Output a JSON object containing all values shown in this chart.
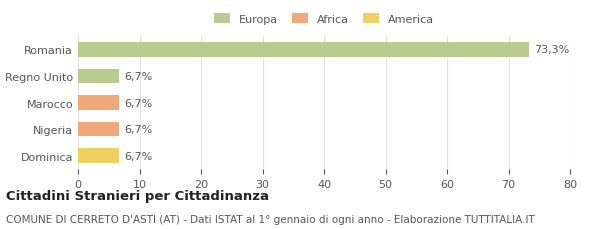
{
  "categories": [
    "Dominica",
    "Nigeria",
    "Marocco",
    "Regno Unito",
    "Romania"
  ],
  "values": [
    6.7,
    6.7,
    6.7,
    6.7,
    73.3
  ],
  "colors": [
    "#f0d060",
    "#f0a878",
    "#f0a878",
    "#b8cc90",
    "#b8cc90"
  ],
  "labels": [
    "6,7%",
    "6,7%",
    "6,7%",
    "6,7%",
    "73,3%"
  ],
  "legend_labels": [
    "Europa",
    "Africa",
    "America"
  ],
  "legend_colors": [
    "#b8cc90",
    "#f0a878",
    "#f0d060"
  ],
  "xlim": [
    0,
    80
  ],
  "xticks": [
    0,
    10,
    20,
    30,
    40,
    50,
    60,
    70,
    80
  ],
  "title": "Cittadini Stranieri per Cittadinanza",
  "subtitle": "COMUNE DI CERRETO D'ASTI (AT) - Dati ISTAT al 1° gennaio di ogni anno - Elaborazione TUTTITALIA.IT",
  "bar_height": 0.55,
  "bg_color": "#ffffff",
  "grid_color": "#e0e0e0",
  "text_color": "#555555",
  "label_fontsize": 8,
  "tick_fontsize": 8,
  "title_fontsize": 9.5,
  "subtitle_fontsize": 7.5
}
